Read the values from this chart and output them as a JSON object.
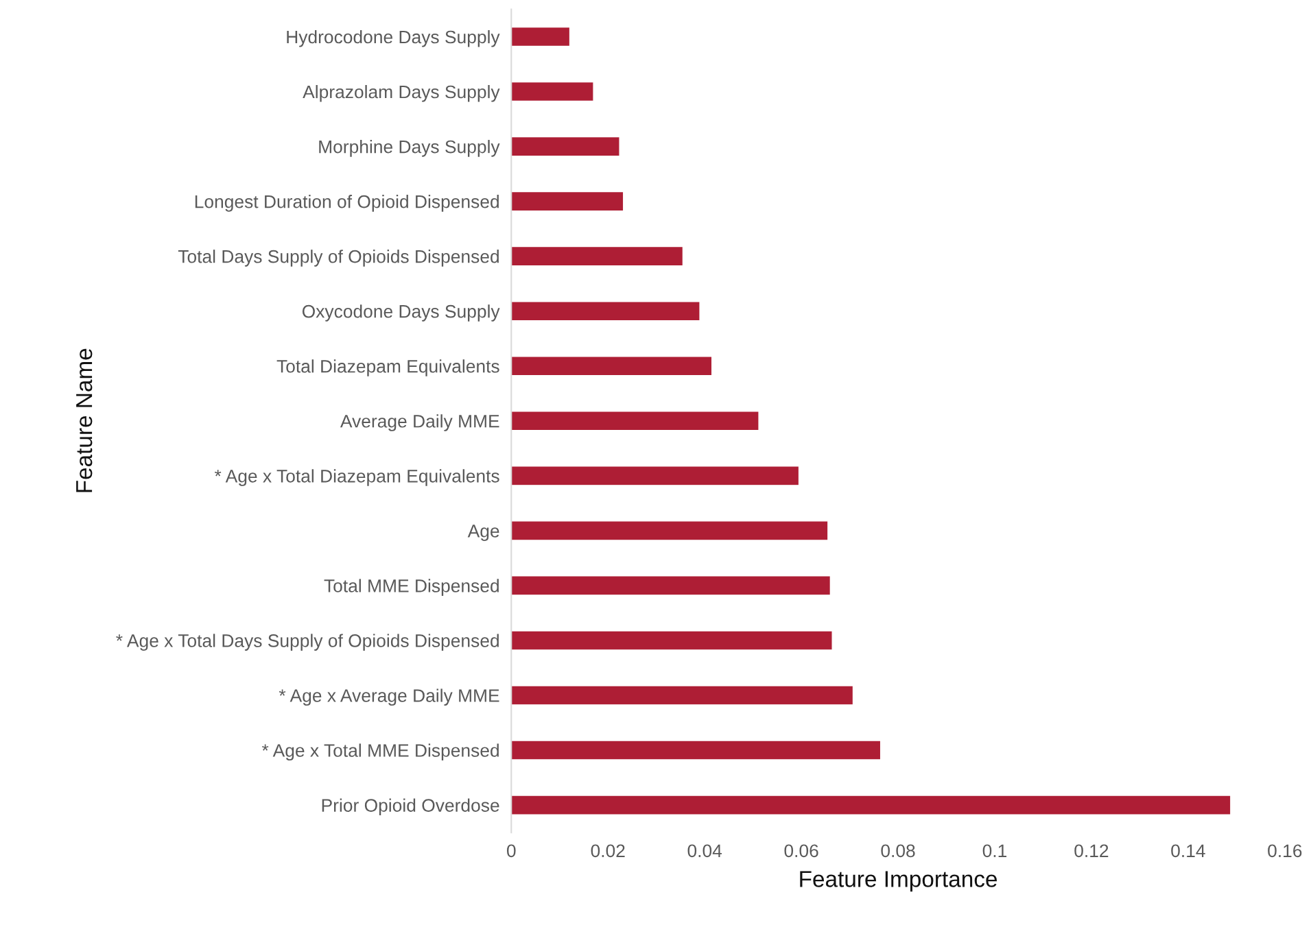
{
  "chart_data": {
    "type": "bar",
    "orientation": "horizontal",
    "xlabel": "Feature Importance",
    "ylabel": "Feature Name",
    "categories": [
      "Hydrocodone Days Supply",
      "Alprazolam Days Supply",
      "Morphine Days Supply",
      "Longest Duration of Opioid Dispensed",
      "Total Days Supply of Opioids Dispensed",
      "Oxycodone Days Supply",
      "Total Diazepam Equivalents",
      "Average Daily MME",
      "* Age x Total Diazepam Equivalents",
      "Age",
      "Total MME Dispensed",
      "* Age x Total Days Supply of Opioids Dispensed",
      "* Age x Average Daily MME",
      "* Age x Total MME Dispensed",
      "Prior Opioid Overdose"
    ],
    "values": [
      0.0121,
      0.017,
      0.0224,
      0.0232,
      0.0355,
      0.039,
      0.0415,
      0.0512,
      0.0595,
      0.0655,
      0.066,
      0.0664,
      0.0707,
      0.0764,
      0.1488
    ],
    "color": "#ae1e35",
    "xlim": [
      0,
      0.16
    ],
    "xticks": [
      0,
      0.02,
      0.04,
      0.06,
      0.08,
      0.1,
      0.12,
      0.14,
      0.16
    ],
    "grid": false
  }
}
